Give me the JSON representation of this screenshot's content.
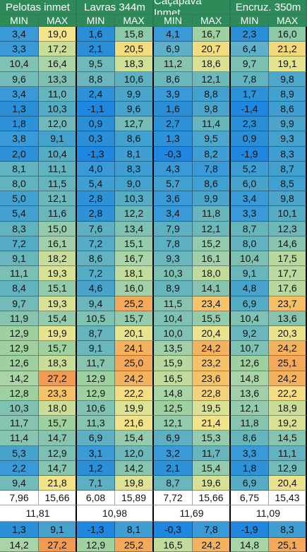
{
  "headers": [
    "Pelotas inmet",
    "Lavras 344m",
    "Caçapava Inmet",
    "Encruz. 350m"
  ],
  "subheaders": [
    "MIN",
    "MAX",
    "MIN",
    "MAX",
    "MIN",
    "MAX",
    "MIN",
    "MAX"
  ],
  "rows": [
    [
      "3,4",
      "19,0",
      "1,6",
      "15,8",
      "4,1",
      "16,7",
      "2,3",
      "16,0"
    ],
    [
      "3,3",
      "17,2",
      "2,1",
      "20,5",
      "6,9",
      "20,7",
      "6,4",
      "21,2"
    ],
    [
      "10,4",
      "16,4",
      "9,5",
      "18,3",
      "11,2",
      "18,6",
      "9,7",
      "19,1"
    ],
    [
      "9,6",
      "13,3",
      "8,8",
      "10,6",
      "8,6",
      "12,1",
      "7,8",
      "9,8"
    ],
    [
      "3,4",
      "11,0",
      "2,4",
      "9,9",
      "3,9",
      "8,8",
      "1,7",
      "8,9"
    ],
    [
      "1,3",
      "10,3",
      "-1,1",
      "9,6",
      "1,6",
      "9,8",
      "-1,4",
      "8,6"
    ],
    [
      "1,8",
      "12,0",
      "0,9",
      "12,7",
      "2,7",
      "11,4",
      "2,3",
      "9,9"
    ],
    [
      "3,8",
      "9,1",
      "0,3",
      "8,6",
      "1,3",
      "9,5",
      "0,9",
      "9,3"
    ],
    [
      "2,0",
      "10,4",
      "-1,3",
      "8,1",
      "-0,3",
      "8,2",
      "-1,9",
      "8,3"
    ],
    [
      "8,1",
      "11,1",
      "4,0",
      "8,3",
      "4,3",
      "7,8",
      "5,2",
      "8,7"
    ],
    [
      "8,0",
      "11,5",
      "5,4",
      "9,0",
      "5,7",
      "8,6",
      "6,0",
      "8,5"
    ],
    [
      "5,0",
      "12,1",
      "2,8",
      "10,3",
      "3,6",
      "9,9",
      "3,4",
      "9,8"
    ],
    [
      "5,4",
      "11,6",
      "2,8",
      "12,2",
      "3,4",
      "11,8",
      "3,3",
      "10,1"
    ],
    [
      "8,3",
      "15,0",
      "7,6",
      "13,4",
      "7,9",
      "12,1",
      "8,7",
      "12,3"
    ],
    [
      "7,2",
      "16,1",
      "7,2",
      "15,1",
      "7,8",
      "15,2",
      "8,0",
      "14,6"
    ],
    [
      "9,1",
      "18,2",
      "8,6",
      "16,7",
      "9,3",
      "16,1",
      "10,4",
      "17,5"
    ],
    [
      "11,1",
      "19,3",
      "7,2",
      "18,1",
      "10,3",
      "18,0",
      "9,1",
      "17,7"
    ],
    [
      "8,4",
      "15,1",
      "4,6",
      "16,0",
      "8,9",
      "14,1",
      "4,8",
      "17,6"
    ],
    [
      "9,7",
      "19,3",
      "9,4",
      "25,2",
      "11,5",
      "23,4",
      "6,9",
      "23,7"
    ],
    [
      "11,9",
      "15,4",
      "10,5",
      "15,7",
      "10,4",
      "15,5",
      "10,4",
      "13,6"
    ],
    [
      "12,9",
      "19,9",
      "8,7",
      "20,1",
      "10,0",
      "20,4",
      "9,2",
      "20,3"
    ],
    [
      "12,9",
      "15,7",
      "9,1",
      "24,1",
      "13,5",
      "24,2",
      "10,7",
      "24,2"
    ],
    [
      "12,6",
      "18,3",
      "11,7",
      "25,0",
      "15,9",
      "23,2",
      "12,6",
      "25,1"
    ],
    [
      "14,2",
      "27,2",
      "12,9",
      "24,2",
      "16,5",
      "23,6",
      "14,8",
      "24,2"
    ],
    [
      "12,8",
      "23,3",
      "12,9",
      "22,2",
      "14,8",
      "22,8",
      "13,6",
      "22,2"
    ],
    [
      "10,3",
      "18,0",
      "10,6",
      "19,9",
      "12,5",
      "19,5",
      "12,1",
      "18,9"
    ],
    [
      "11,7",
      "15,7",
      "11,3",
      "21,6",
      "12,1",
      "21,4",
      "11,8",
      "19,2"
    ],
    [
      "11,4",
      "14,7",
      "6,9",
      "15,4",
      "6,9",
      "15,3",
      "8,6",
      "14,5"
    ],
    [
      "5,3",
      "12,9",
      "3,1",
      "12,0",
      "3,2",
      "11,7",
      "3,3",
      "11,1"
    ],
    [
      "2,2",
      "14,7",
      "1,2",
      "14,2",
      "2,1",
      "15,4",
      "1,8",
      "12,9"
    ],
    [
      "9,4",
      "21,8",
      "7,1",
      "19,8",
      "8,7",
      "19,6",
      "6,9",
      "20,4"
    ]
  ],
  "colors": [
    [
      "#3a9ad8",
      "#f3e48a",
      "#2a8fd6",
      "#8bc9a8",
      "#3a9ad8",
      "#9fd0a0",
      "#2a8fd6",
      "#8bc9a8"
    ],
    [
      "#3a9ad8",
      "#c9dd98",
      "#2a8fd6",
      "#f2dc80",
      "#5fb0c8",
      "#f2dc80",
      "#5fb0c8",
      "#f2d87c"
    ],
    [
      "#7fc1b3",
      "#a9d4a6",
      "#6fb9bb",
      "#d0df96",
      "#86c4b0",
      "#d8e194",
      "#7dc0b4",
      "#e4e38e"
    ],
    [
      "#72bbb8",
      "#7cc0b4",
      "#69b6bd",
      "#5dafc2",
      "#69b6bd",
      "#6cb8bb",
      "#62b3c0",
      "#4da6cc"
    ],
    [
      "#3a9ad8",
      "#66b5bd",
      "#2e92d8",
      "#4ba5ca",
      "#3a9ad8",
      "#43a1cf",
      "#2e92d8",
      "#43a1cf"
    ],
    [
      "#2a8fd6",
      "#55acc5",
      "#1f87e0",
      "#48a3cc",
      "#2a8fd6",
      "#4ba5ca",
      "#1f87e0",
      "#3f9ed2"
    ],
    [
      "#2e92d8",
      "#6fb9bb",
      "#2a8fd6",
      "#72bbb8",
      "#2e92d8",
      "#66b5bd",
      "#2a8fd6",
      "#4ba5ca"
    ],
    [
      "#3a9ad8",
      "#45a2cd",
      "#2a8fd6",
      "#40a0d0",
      "#2e92d8",
      "#4da6cc",
      "#2a8fd6",
      "#45a2cd"
    ],
    [
      "#2e92d8",
      "#55acc5",
      "#1f87e0",
      "#3f9ed2",
      "#1f87e0",
      "#3f9ed2",
      "#1f87e0",
      "#3f9ed2"
    ],
    [
      "#62b3c0",
      "#62b3c0",
      "#3a9ad8",
      "#3f9ed2",
      "#3a9ad8",
      "#3a9ad8",
      "#3f9ed2",
      "#43a1cf"
    ],
    [
      "#62b3c0",
      "#66b5bd",
      "#3f9ed2",
      "#45a2cd",
      "#43a1cf",
      "#40a0d0",
      "#48a3cc",
      "#40a0d0"
    ],
    [
      "#43a1cf",
      "#6cb8bb",
      "#2e92d8",
      "#55acc5",
      "#3a9ad8",
      "#4ba5ca",
      "#3a9ad8",
      "#4ba5ca"
    ],
    [
      "#43a1cf",
      "#69b6bd",
      "#2e92d8",
      "#6cb8bb",
      "#3a9ad8",
      "#66b5bd",
      "#3a9ad8",
      "#55acc5"
    ],
    [
      "#62b3c0",
      "#93cbac",
      "#5dafc2",
      "#7fc1b3",
      "#5dafc2",
      "#6cb8bb",
      "#66b5bd",
      "#6cb8bb"
    ],
    [
      "#55acc5",
      "#a0cfa9",
      "#55acc5",
      "#93cbac",
      "#5dafc2",
      "#93cbac",
      "#62b3c0",
      "#86c4b0"
    ],
    [
      "#69b6bd",
      "#c8dd99",
      "#62b3c0",
      "#a9d4a6",
      "#69b6bd",
      "#a0cfa9",
      "#7cc0b4",
      "#b8d8a0"
    ],
    [
      "#7cc0b4",
      "#d8e194",
      "#55acc5",
      "#c0db9c",
      "#7cc0b4",
      "#c0db9c",
      "#69b6bd",
      "#bcd9a0"
    ],
    [
      "#62b3c0",
      "#93cbac",
      "#48a3cc",
      "#a0cfa9",
      "#66b5bd",
      "#86c4b0",
      "#48a3cc",
      "#b8d8a0"
    ],
    [
      "#72bbb8",
      "#d8e194",
      "#69b6bd",
      "#f4a85a",
      "#86c4b0",
      "#f7c36a",
      "#55acc5",
      "#f6bf66"
    ],
    [
      "#86c4b0",
      "#93cbac",
      "#7fc1b3",
      "#93cbac",
      "#7fc1b3",
      "#93cbac",
      "#7fc1b3",
      "#86c4b0"
    ],
    [
      "#9fd0a0",
      "#e6e48e",
      "#66b5bd",
      "#e8e48e",
      "#7fc1b3",
      "#eae38c",
      "#69b6bd",
      "#eae38c"
    ],
    [
      "#9fd0a0",
      "#9fd0a0",
      "#69b6bd",
      "#f5b25e",
      "#a0cfa9",
      "#f5b25e",
      "#7fc1b3",
      "#f5b25e"
    ],
    [
      "#9fd0a0",
      "#c9dd98",
      "#86c4b0",
      "#f4a85a",
      "#b8d8a0",
      "#f6c268",
      "#9fd0a0",
      "#f4a85a"
    ],
    [
      "#a9d4a6",
      "#f29a52",
      "#9fd0a0",
      "#f5b25e",
      "#c0db9c",
      "#f6c268",
      "#a9d4a6",
      "#f5b25e"
    ],
    [
      "#9fd0a0",
      "#f6c268",
      "#9fd0a0",
      "#f4dc82",
      "#a9d4a6",
      "#f2d27a",
      "#a0cfa9",
      "#f4dc82"
    ],
    [
      "#7fc1b3",
      "#c9dd98",
      "#7fc1b3",
      "#dde294",
      "#9fd0a0",
      "#d8e194",
      "#93cbac",
      "#c9dd98"
    ],
    [
      "#86c4b0",
      "#9fd0a0",
      "#86c4b0",
      "#f2e288",
      "#93cbac",
      "#f2e288",
      "#86c4b0",
      "#d8e194"
    ],
    [
      "#86c4b0",
      "#86c4b0",
      "#5dafc2",
      "#93cbac",
      "#5dafc2",
      "#93cbac",
      "#66b5bd",
      "#86c4b0"
    ],
    [
      "#48a3cc",
      "#7cc0b4",
      "#3a9ad8",
      "#6cb8bb",
      "#3a9ad8",
      "#66b5bd",
      "#3a9ad8",
      "#62b3c0"
    ],
    [
      "#3a9ad8",
      "#86c4b0",
      "#2a8fd6",
      "#86c4b0",
      "#2e92d8",
      "#93cbac",
      "#2e92d8",
      "#72bbb8"
    ],
    [
      "#72bbb8",
      "#f2e288",
      "#5dafc2",
      "#dde294",
      "#69b6bd",
      "#d8e194",
      "#55acc5",
      "#eae38c"
    ]
  ],
  "averages": [
    "7,96",
    "15,66",
    "6,08",
    "15,89",
    "7,72",
    "15,66",
    "6,75",
    "15,43"
  ],
  "overall": [
    "11,81",
    "10,98",
    "11,69",
    "11,09"
  ],
  "min_row": [
    "1,3",
    "9,1",
    "-1,3",
    "8,1",
    "-0,3",
    "7,8",
    "-1,9",
    "8,3"
  ],
  "min_colors": [
    "#2a8fd6",
    "#45a2cd",
    "#1f87e0",
    "#3f9ed2",
    "#1f87e0",
    "#3a9ad8",
    "#1f87e0",
    "#3f9ed2"
  ],
  "max_row": [
    "14,2",
    "27,2",
    "12,9",
    "25,2",
    "16,5",
    "24,2",
    "14,8",
    "25,1"
  ],
  "max_colors": [
    "#a9d4a6",
    "#f29a52",
    "#9fd0a0",
    "#f4a85a",
    "#c0db9c",
    "#f5b25e",
    "#a9d4a6",
    "#f4a85a"
  ]
}
